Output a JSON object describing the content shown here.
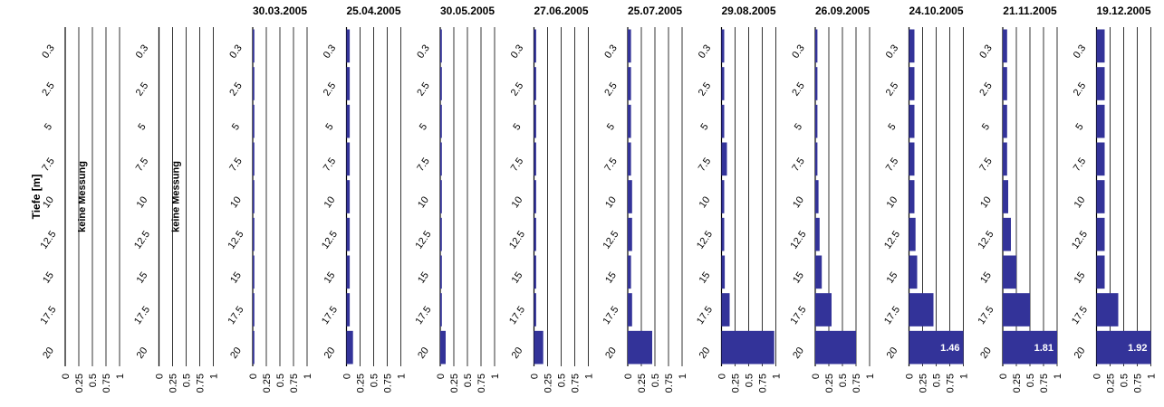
{
  "chart_data": [
    {
      "type": "bar",
      "orientation": "horizontal",
      "ylabel": "Tiefe [m]",
      "annotation": "keine Messung",
      "categories": [
        "0.3",
        "2.5",
        "5",
        "7.5",
        "10",
        "12.5",
        "15",
        "17.5",
        "20"
      ],
      "values": [
        null,
        null,
        null,
        null,
        null,
        null,
        null,
        null,
        null
      ],
      "xlim": [
        0,
        1
      ],
      "xticks": [
        0,
        0.25,
        0.5,
        0.75,
        1
      ],
      "color": "#333399",
      "grid": true
    },
    {
      "type": "bar",
      "orientation": "horizontal",
      "annotation": "keine Messung",
      "categories": [
        "0.3",
        "2.5",
        "5",
        "7.5",
        "10",
        "12.5",
        "15",
        "17.5",
        "20"
      ],
      "values": [
        null,
        null,
        null,
        null,
        null,
        null,
        null,
        null,
        null
      ],
      "xlim": [
        0,
        1
      ],
      "xticks": [
        0,
        0.25,
        0.5,
        0.75,
        1
      ],
      "color": "#333399",
      "grid": true
    },
    {
      "type": "bar",
      "orientation": "horizontal",
      "title": "30.03.2005",
      "categories": [
        "0.3",
        "2.5",
        "5",
        "7.5",
        "10",
        "12.5",
        "15",
        "17.5",
        "20"
      ],
      "values": [
        0.03,
        0.03,
        0.03,
        0.03,
        0.03,
        0.03,
        0.03,
        0.03,
        0.03
      ],
      "xlim": [
        0,
        1
      ],
      "xticks": [
        0,
        0.25,
        0.5,
        0.75,
        1
      ],
      "color": "#333399",
      "grid": true
    },
    {
      "type": "bar",
      "orientation": "horizontal",
      "title": "25.04.2005",
      "categories": [
        "0.3",
        "2.5",
        "5",
        "7.5",
        "10",
        "12.5",
        "15",
        "17.5",
        "20"
      ],
      "values": [
        0.06,
        0.06,
        0.06,
        0.06,
        0.06,
        0.06,
        0.06,
        0.06,
        0.12
      ],
      "xlim": [
        0,
        1
      ],
      "xticks": [
        0,
        0.25,
        0.5,
        0.75,
        1
      ],
      "color": "#333399",
      "grid": true
    },
    {
      "type": "bar",
      "orientation": "horizontal",
      "title": "30.05.2005",
      "categories": [
        "0.3",
        "2.5",
        "5",
        "7.5",
        "10",
        "12.5",
        "15",
        "17.5",
        "20"
      ],
      "values": [
        0.03,
        0.03,
        0.03,
        0.03,
        0.03,
        0.03,
        0.03,
        0.03,
        0.1
      ],
      "xlim": [
        0,
        1
      ],
      "xticks": [
        0,
        0.25,
        0.5,
        0.75,
        1
      ],
      "color": "#333399",
      "grid": true
    },
    {
      "type": "bar",
      "orientation": "horizontal",
      "title": "27.06.2005",
      "categories": [
        "0.3",
        "2.5",
        "5",
        "7.5",
        "10",
        "12.5",
        "15",
        "17.5",
        "20"
      ],
      "values": [
        0.04,
        0.04,
        0.04,
        0.04,
        0.04,
        0.04,
        0.04,
        0.04,
        0.17
      ],
      "xlim": [
        0,
        1
      ],
      "xticks": [
        0,
        0.25,
        0.5,
        0.75,
        1
      ],
      "color": "#333399",
      "grid": true
    },
    {
      "type": "bar",
      "orientation": "horizontal",
      "title": "25.07.2005",
      "categories": [
        "0.3",
        "2.5",
        "5",
        "7.5",
        "10",
        "12.5",
        "15",
        "17.5",
        "20"
      ],
      "values": [
        0.06,
        0.06,
        0.06,
        0.06,
        0.08,
        0.08,
        0.06,
        0.08,
        0.45
      ],
      "xlim": [
        0,
        1
      ],
      "xticks": [
        0,
        0.25,
        0.5,
        0.75,
        1
      ],
      "color": "#333399",
      "grid": true
    },
    {
      "type": "bar",
      "orientation": "horizontal",
      "title": "29.08.2005",
      "categories": [
        "0.3",
        "2.5",
        "5",
        "7.5",
        "10",
        "12.5",
        "15",
        "17.5",
        "20"
      ],
      "values": [
        0.05,
        0.05,
        0.05,
        0.1,
        0.05,
        0.05,
        0.06,
        0.15,
        0.97
      ],
      "xlim": [
        0,
        1
      ],
      "xticks": [
        0,
        0.25,
        0.5,
        0.75,
        1
      ],
      "color": "#333399",
      "grid": true
    },
    {
      "type": "bar",
      "orientation": "horizontal",
      "title": "26.09.2005",
      "categories": [
        "0.3",
        "2.5",
        "5",
        "7.5",
        "10",
        "12.5",
        "15",
        "17.5",
        "20"
      ],
      "values": [
        0.04,
        0.04,
        0.04,
        0.04,
        0.06,
        0.08,
        0.12,
        0.3,
        0.75
      ],
      "xlim": [
        0,
        1
      ],
      "xticks": [
        0,
        0.25,
        0.5,
        0.75,
        1
      ],
      "color": "#333399",
      "grid": true
    },
    {
      "type": "bar",
      "orientation": "horizontal",
      "title": "24.10.2005",
      "categories": [
        "0.3",
        "2.5",
        "5",
        "7.5",
        "10",
        "12.5",
        "15",
        "17.5",
        "20"
      ],
      "values": [
        0.1,
        0.1,
        0.1,
        0.1,
        0.1,
        0.12,
        0.15,
        0.45,
        1.46
      ],
      "value_labels": [
        null,
        null,
        null,
        null,
        null,
        null,
        null,
        null,
        "1.46"
      ],
      "xlim": [
        0,
        1
      ],
      "xticks": [
        0,
        0.25,
        0.5,
        0.75,
        1
      ],
      "color": "#333399",
      "grid": true
    },
    {
      "type": "bar",
      "orientation": "horizontal",
      "title": "21.11.2005",
      "categories": [
        "0.3",
        "2.5",
        "5",
        "7.5",
        "10",
        "12.5",
        "15",
        "17.5",
        "20"
      ],
      "values": [
        0.08,
        0.08,
        0.08,
        0.08,
        0.1,
        0.15,
        0.25,
        0.5,
        1.81
      ],
      "value_labels": [
        null,
        null,
        null,
        null,
        null,
        null,
        null,
        null,
        "1.81"
      ],
      "xlim": [
        0,
        1
      ],
      "xticks": [
        0,
        0.25,
        0.5,
        0.75,
        1
      ],
      "color": "#333399",
      "grid": true
    },
    {
      "type": "bar",
      "orientation": "horizontal",
      "title": "19.12.2005",
      "categories": [
        "0.3",
        "2.5",
        "5",
        "7.5",
        "10",
        "12.5",
        "15",
        "17.5",
        "20"
      ],
      "values": [
        0.15,
        0.15,
        0.15,
        0.15,
        0.15,
        0.15,
        0.15,
        0.4,
        1.92
      ],
      "value_labels": [
        null,
        null,
        null,
        null,
        null,
        null,
        null,
        null,
        "1.92"
      ],
      "xlim": [
        0,
        1
      ],
      "xticks": [
        0,
        0.25,
        0.5,
        0.75,
        1
      ],
      "color": "#333399",
      "grid": true
    }
  ]
}
